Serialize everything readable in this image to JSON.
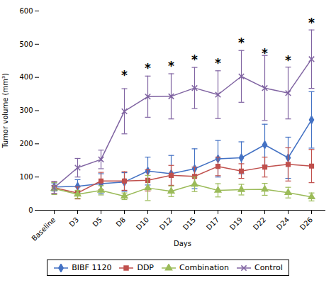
{
  "chart_data": {
    "type": "line",
    "xlabel": "Days",
    "ylabel": "Tumor volume (mm³)",
    "categories": [
      "Baseline",
      "D3",
      "D5",
      "D8",
      "D10",
      "D12",
      "D15",
      "D17",
      "D19",
      "D22",
      "D24",
      "D26"
    ],
    "series": [
      {
        "name": "BIBF 1120",
        "color": "#4472C4",
        "marker": "diamond",
        "values": [
          70,
          72,
          80,
          85,
          118,
          110,
          125,
          155,
          158,
          197,
          158,
          272
        ],
        "errors": [
          12,
          20,
          30,
          28,
          42,
          55,
          60,
          55,
          48,
          62,
          62,
          85
        ]
      },
      {
        "name": "DDP",
        "color": "#C0504D",
        "marker": "square",
        "values": [
          68,
          52,
          88,
          88,
          90,
          105,
          102,
          132,
          118,
          130,
          138,
          133
        ],
        "errors": [
          18,
          18,
          26,
          28,
          32,
          30,
          28,
          28,
          22,
          30,
          50,
          50
        ]
      },
      {
        "name": "Combination",
        "color": "#9BBB59",
        "marker": "triangle",
        "values": [
          65,
          48,
          60,
          42,
          67,
          57,
          78,
          60,
          62,
          63,
          53,
          40
        ],
        "errors": [
          18,
          12,
          14,
          10,
          38,
          16,
          22,
          20,
          16,
          18,
          16,
          12
        ]
      },
      {
        "name": "Control",
        "color": "#8064A2",
        "marker": "x",
        "values": [
          68,
          128,
          153,
          298,
          342,
          343,
          368,
          348,
          403,
          368,
          353,
          455
        ],
        "errors": [
          18,
          28,
          28,
          68,
          62,
          68,
          62,
          72,
          78,
          98,
          78,
          88
        ]
      }
    ],
    "annotations": [
      {
        "text": "*",
        "x": "D8",
        "y": 395
      },
      {
        "text": "*",
        "x": "D10",
        "y": 415
      },
      {
        "text": "*",
        "x": "D12",
        "y": 422
      },
      {
        "text": "*",
        "x": "D15",
        "y": 440
      },
      {
        "text": "*",
        "x": "D17",
        "y": 430
      },
      {
        "text": "*",
        "x": "D19",
        "y": 492
      },
      {
        "text": "*",
        "x": "D22",
        "y": 460
      },
      {
        "text": "*",
        "x": "D24",
        "y": 438
      },
      {
        "text": "*",
        "x": "D26",
        "y": 552
      }
    ],
    "ylim": [
      0,
      600
    ],
    "yticks": [
      0,
      100,
      200,
      300,
      400,
      500,
      600
    ],
    "grid": false,
    "legend": "lower center"
  }
}
